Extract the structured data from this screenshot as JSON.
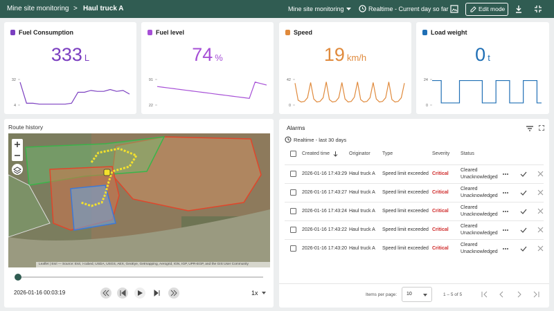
{
  "header": {
    "breadcrumb_root": "Mine site monitoring",
    "separator": ">",
    "current": "Haul truck A",
    "dashboard_select": "Mine site monitoring",
    "timewindow": "Realtime - Current day so far",
    "edit_button": "Edit mode"
  },
  "cards": [
    {
      "title": "Fuel Consumption",
      "value": 333,
      "unit": "L",
      "color": "#7b3fc0",
      "chart": {
        "type": "line",
        "ylim": [
          4,
          32
        ],
        "yticks": [
          32,
          4
        ],
        "values": [
          29,
          6,
          6,
          5,
          5,
          5,
          5,
          5,
          6,
          18,
          18,
          20,
          19,
          19,
          21,
          19,
          20,
          16
        ]
      }
    },
    {
      "title": "Fuel level",
      "value": 74,
      "unit": "%",
      "color": "#a64fd6",
      "chart": {
        "type": "line",
        "ylim": [
          22,
          91
        ],
        "yticks": [
          91,
          22
        ],
        "values": [
          72,
          70,
          68,
          66,
          64,
          62,
          60,
          58,
          56,
          54,
          52,
          50,
          48,
          46,
          44,
          42,
          40,
          84,
          80,
          76
        ]
      }
    },
    {
      "title": "Speed",
      "value": 19,
      "unit": "km/h",
      "color": "#e08a3c",
      "chart": {
        "type": "line",
        "ylim": [
          0,
          42
        ],
        "yticks": [
          42,
          0
        ],
        "values": [
          36,
          8,
          5,
          6,
          12,
          37,
          10,
          5,
          6,
          12,
          38,
          9,
          5,
          6,
          12,
          37,
          10,
          5,
          6,
          13,
          38,
          9,
          5,
          6,
          12,
          37,
          10,
          5,
          6,
          12,
          38,
          9,
          5,
          6,
          12,
          36
        ]
      }
    },
    {
      "title": "Load weight",
      "value": 0,
      "unit": "t",
      "color": "#1f6fb5",
      "chart": {
        "type": "line",
        "ylim": [
          0,
          24
        ],
        "yticks": [
          24,
          0
        ],
        "values": [
          23,
          23,
          2,
          2,
          2,
          2,
          23,
          23,
          23,
          23,
          23,
          2,
          2,
          2,
          23,
          23,
          23,
          2,
          2,
          2,
          23,
          23,
          23,
          2,
          2
        ]
      }
    }
  ],
  "route": {
    "title": "Route history",
    "attribution": "Leaflet | Esri — Source: Esri, i-cubed, USDA, USGS, AEX, GeoEye, Getmapping, Aerogrid, IGN, IGP, UPR-EGP, and the GIS User Community",
    "timestamp": "2026-01-16 00:03:19",
    "speed": "1x"
  },
  "alarms": {
    "title": "Alarms",
    "subtitle": "Realtime - last 30 days",
    "columns": [
      "Created time",
      "Originator",
      "Type",
      "Severity",
      "Status"
    ],
    "rows": [
      {
        "time": "2026-01-16 17:43:29",
        "originator": "Haul truck A",
        "type": "Speed limit exceeded",
        "severity": "Critical",
        "status": [
          "Cleared",
          "Unacknowledged"
        ]
      },
      {
        "time": "2026-01-16 17:43:27",
        "originator": "Haul truck A",
        "type": "Speed limit exceeded",
        "severity": "Critical",
        "status": [
          "Cleared",
          "Unacknowledged"
        ]
      },
      {
        "time": "2026-01-16 17:43:24",
        "originator": "Haul truck A",
        "type": "Speed limit exceeded",
        "severity": "Critical",
        "status": [
          "Cleared",
          "Unacknowledged"
        ]
      },
      {
        "time": "2026-01-16 17:43:22",
        "originator": "Haul truck A",
        "type": "Speed limit exceeded",
        "severity": "Critical",
        "status": [
          "Cleared",
          "Unacknowledged"
        ]
      },
      {
        "time": "2026-01-16 17:43:20",
        "originator": "Haul truck A",
        "type": "Speed limit exceeded",
        "severity": "Critical",
        "status": [
          "Cleared",
          "Unacknowledged"
        ]
      }
    ],
    "footer": {
      "items_label": "Items per page:",
      "page_size": "10",
      "range": "1 – 5 of 5"
    }
  }
}
